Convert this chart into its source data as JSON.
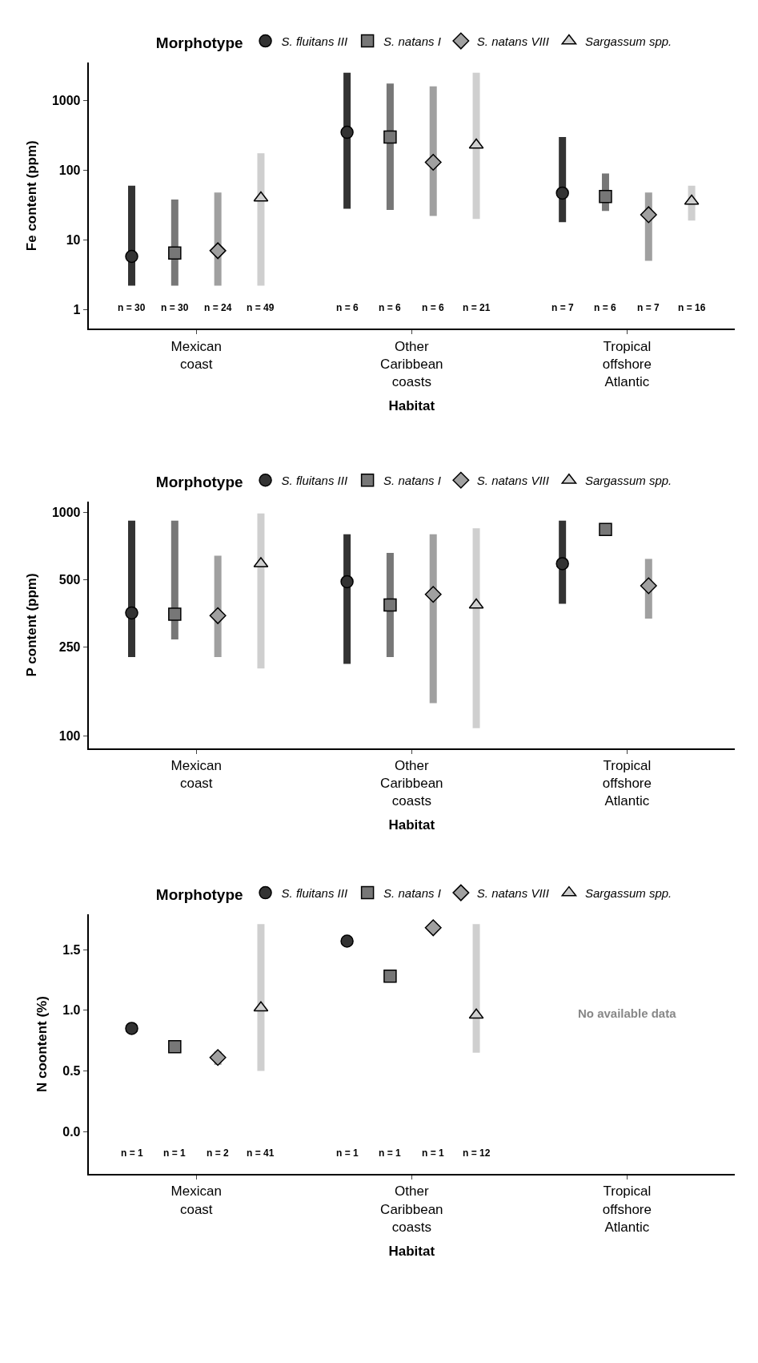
{
  "chart_data": [
    {
      "type": "scatter",
      "xlabel": "Habitat",
      "ylabel": "Fe content (ppm)",
      "legend_title": "Morphotype",
      "legend": "top",
      "log": true,
      "categories": [
        "Mexican coast",
        "Other Caribbean coasts",
        "Tropical offshore Atlantic"
      ],
      "ylim": [
        0.53,
        3500
      ],
      "yticks": [
        1,
        10,
        100,
        1000
      ],
      "series": [
        {
          "name": "S. fluitans III",
          "color": "#333333",
          "marker": "circle",
          "values": [
            5.8,
            350,
            47
          ],
          "errors": [
            [
              2.2,
              60
            ],
            [
              28,
              2500
            ],
            [
              18,
              300
            ]
          ]
        },
        {
          "name": "S. natans I",
          "color": "#777777",
          "marker": "square",
          "values": [
            6.5,
            300,
            42
          ],
          "errors": [
            [
              2.2,
              38
            ],
            [
              27,
              1750
            ],
            [
              26,
              90
            ]
          ]
        },
        {
          "name": "S. natans VIII",
          "color": "#a0a0a0",
          "marker": "diamond",
          "values": [
            7,
            130,
            23
          ],
          "errors": [
            [
              2.2,
              48
            ],
            [
              22,
              1600
            ],
            [
              5,
              48
            ]
          ]
        },
        {
          "name": "Sargassum spp.",
          "color": "#cfcfcf",
          "marker": "triangle",
          "values": [
            40,
            230,
            36
          ],
          "errors": [
            [
              2.2,
              175
            ],
            [
              20,
              2500
            ],
            [
              19,
              60
            ]
          ]
        }
      ],
      "annotations": [
        "n = 30",
        "n = 30",
        "n = 24",
        "n = 49",
        "n = 6",
        "n = 6",
        "n = 6",
        "n = 21",
        "n = 7",
        "n = 6",
        "n = 7",
        "n = 16"
      ]
    },
    {
      "type": "scatter",
      "xlabel": "Habitat",
      "ylabel": "P content (ppm)",
      "legend_title": "Morphotype",
      "legend": "top",
      "log": true,
      "categories": [
        "Mexican coast",
        "Other Caribbean coasts",
        "Tropical offshore Atlantic"
      ],
      "ylim": [
        88,
        1117
      ],
      "yticks": [
        100,
        250,
        500,
        1000
      ],
      "series": [
        {
          "name": "S. fluitans III",
          "color": "#333333",
          "marker": "circle",
          "values": [
            355,
            490,
            590
          ],
          "errors": [
            [
              225,
              920
            ],
            [
              210,
              800
            ],
            [
              390,
              920
            ]
          ]
        },
        {
          "name": "S. natans I",
          "color": "#777777",
          "marker": "square",
          "values": [
            350,
            385,
            840
          ],
          "errors": [
            [
              270,
              920
            ],
            [
              225,
              660
            ],
            [
              790,
              880
            ]
          ]
        },
        {
          "name": "S. natans VIII",
          "color": "#a0a0a0",
          "marker": "diamond",
          "values": [
            345,
            430,
            470
          ],
          "errors": [
            [
              225,
              640
            ],
            [
              140,
              800
            ],
            [
              335,
              620
            ]
          ]
        },
        {
          "name": "Sargassum spp.",
          "color": "#cfcfcf",
          "marker": "triangle",
          "values": [
            590,
            385,
            null
          ],
          "errors": [
            [
              200,
              990
            ],
            [
              108,
              850
            ],
            null
          ]
        }
      ]
    },
    {
      "type": "scatter",
      "xlabel": "Habitat",
      "ylabel": "N coontent (%)",
      "legend_title": "Morphotype",
      "legend": "top",
      "categories": [
        "Mexican coast",
        "Other Caribbean coasts",
        "Tropical offshore Atlantic"
      ],
      "ylim": [
        -0.35,
        1.79
      ],
      "yticks": [
        {
          "value": 0,
          "label": "0.0"
        },
        0.5,
        {
          "value": 1,
          "label": "1.0"
        },
        1.5
      ],
      "series": [
        {
          "name": "S. fluitans III",
          "color": "#333333",
          "marker": "circle",
          "values": [
            0.85,
            1.57,
            null
          ],
          "errors": [
            null,
            null,
            null
          ]
        },
        {
          "name": "S. natans I",
          "color": "#777777",
          "marker": "square",
          "values": [
            0.7,
            1.28,
            null
          ],
          "errors": [
            null,
            null,
            null
          ]
        },
        {
          "name": "S. natans VIII",
          "color": "#a0a0a0",
          "marker": "diamond",
          "values": [
            0.61,
            1.68,
            null
          ],
          "errors": [
            [
              0.55,
              0.66
            ],
            null,
            null
          ]
        },
        {
          "name": "Sargassum spp.",
          "color": "#cfcfcf",
          "marker": "triangle",
          "values": [
            1.02,
            0.96,
            null
          ],
          "errors": [
            [
              0.5,
              1.71
            ],
            [
              0.65,
              1.71
            ],
            null
          ]
        }
      ],
      "annotations": [
        "n = 1",
        "n = 1",
        "n = 2",
        "n = 41",
        "n = 1",
        "n = 1",
        "n = 1",
        "n = 12",
        "No available data"
      ]
    }
  ]
}
